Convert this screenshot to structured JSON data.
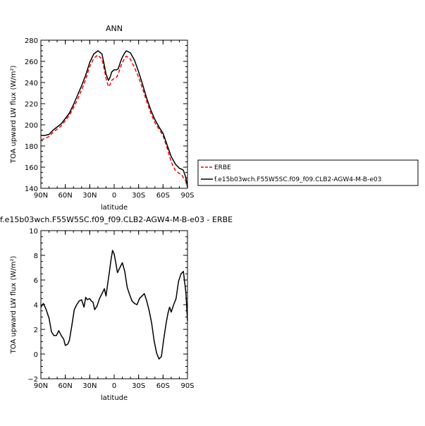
{
  "chart_data": [
    {
      "type": "line",
      "title": "ANN",
      "xlabel": "latitude",
      "ylabel": "TOA upward LW flux (W/m²)",
      "xlim": [
        90,
        -90
      ],
      "ylim": [
        140,
        280
      ],
      "xticks": [
        {
          "v": 90,
          "t": "90N"
        },
        {
          "v": 60,
          "t": "60N"
        },
        {
          "v": 30,
          "t": "30N"
        },
        {
          "v": 0,
          "t": "0"
        },
        {
          "v": -30,
          "t": "30S"
        },
        {
          "v": -60,
          "t": "60S"
        },
        {
          "v": -90,
          "t": "90S"
        }
      ],
      "yticks": [
        140,
        160,
        180,
        200,
        220,
        240,
        260,
        280
      ],
      "legend_position": "right",
      "series": [
        {
          "name": "ERBE",
          "color": "#ff0000",
          "dash": true,
          "x": [
            90,
            85,
            80,
            75,
            70,
            65,
            60,
            55,
            50,
            45,
            40,
            35,
            30,
            25,
            20,
            15,
            12,
            10,
            7,
            5,
            3,
            0,
            -3,
            -5,
            -8,
            -10,
            -13,
            -15,
            -20,
            -25,
            -30,
            -35,
            -40,
            -45,
            -50,
            -55,
            -60,
            -65,
            -70,
            -75,
            -80,
            -83,
            -85,
            -88,
            -90
          ],
          "y": [
            186,
            187,
            189,
            193,
            196,
            199,
            204,
            209,
            216,
            224,
            233,
            243,
            255,
            263,
            266,
            262,
            252,
            244,
            236,
            238,
            242,
            244,
            245,
            248,
            255,
            259,
            263,
            265,
            262,
            254,
            245,
            234,
            222,
            211,
            202,
            196,
            190,
            178,
            165,
            157,
            154,
            153,
            150,
            147,
            141
          ]
        },
        {
          "name": "f.e15b03wch.F55W5SC.f09_f09.CLB2-AGW4-M-B-e03",
          "color": "#000000",
          "dash": false,
          "x": [
            90,
            85,
            80,
            75,
            70,
            65,
            60,
            55,
            50,
            45,
            40,
            35,
            30,
            25,
            20,
            15,
            12,
            10,
            7,
            5,
            3,
            0,
            -3,
            -5,
            -8,
            -10,
            -13,
            -15,
            -20,
            -25,
            -30,
            -35,
            -40,
            -45,
            -50,
            -55,
            -60,
            -65,
            -70,
            -75,
            -80,
            -83,
            -85,
            -88,
            -90
          ],
          "y": [
            190,
            190,
            191,
            195,
            198,
            201,
            206,
            211,
            219,
            228,
            237,
            247,
            259,
            267,
            270,
            267,
            256,
            248,
            242,
            245,
            250,
            252,
            252,
            253,
            260,
            264,
            268,
            270,
            268,
            261,
            250,
            238,
            225,
            214,
            205,
            198,
            192,
            181,
            170,
            163,
            159,
            158,
            157,
            150,
            141
          ]
        }
      ]
    },
    {
      "type": "line",
      "title": "f.e15b03wch.F55W5SC.f09_f09.CLB2-AGW4-M-B-e03 - ERBE",
      "xlabel": "latitude",
      "ylabel": "TOA upward LW flux (W/m²)",
      "xlim": [
        90,
        -90
      ],
      "ylim": [
        -2,
        10
      ],
      "xticks": [
        {
          "v": 90,
          "t": "90N"
        },
        {
          "v": 60,
          "t": "60N"
        },
        {
          "v": 30,
          "t": "30N"
        },
        {
          "v": 0,
          "t": "0"
        },
        {
          "v": -30,
          "t": "30S"
        },
        {
          "v": -60,
          "t": "60S"
        },
        {
          "v": -90,
          "t": "90S"
        }
      ],
      "yticks": [
        -2,
        0,
        2,
        4,
        6,
        8,
        10
      ],
      "series": [
        {
          "name": "",
          "color": "#000000",
          "dash": false,
          "x": [
            90,
            87,
            84,
            80,
            77,
            74,
            71,
            68,
            65,
            62,
            60,
            57,
            55,
            52,
            49,
            46,
            43,
            40,
            37,
            35,
            33,
            30,
            28,
            26,
            24,
            21,
            18,
            15,
            12,
            10,
            8,
            6,
            4,
            2,
            0,
            -2,
            -4,
            -7,
            -10,
            -13,
            -16,
            -19,
            -22,
            -25,
            -28,
            -31,
            -34,
            -37,
            -40,
            -43,
            -46,
            -49,
            -52,
            -55,
            -58,
            -61,
            -64,
            -66,
            -68,
            -70,
            -73,
            -76,
            -79,
            -82,
            -85,
            -88,
            -90
          ],
          "y": [
            3.8,
            4.1,
            3.7,
            2.9,
            1.8,
            1.5,
            1.5,
            1.9,
            1.5,
            1.2,
            0.7,
            0.8,
            1.1,
            2.3,
            3.6,
            4.0,
            4.3,
            4.4,
            3.8,
            4.6,
            4.4,
            4.5,
            4.3,
            4.2,
            3.6,
            3.9,
            4.5,
            4.9,
            5.3,
            4.7,
            5.7,
            6.6,
            7.6,
            8.4,
            8.1,
            7.4,
            6.6,
            7.0,
            7.4,
            6.7,
            5.4,
            4.8,
            4.3,
            4.1,
            4.0,
            4.5,
            4.7,
            4.9,
            4.3,
            3.5,
            2.5,
            1.1,
            0.1,
            -0.4,
            -0.2,
            1.3,
            2.6,
            3.3,
            3.8,
            3.4,
            4.0,
            4.5,
            5.9,
            6.5,
            6.7,
            5.0,
            2.7
          ]
        }
      ]
    }
  ]
}
